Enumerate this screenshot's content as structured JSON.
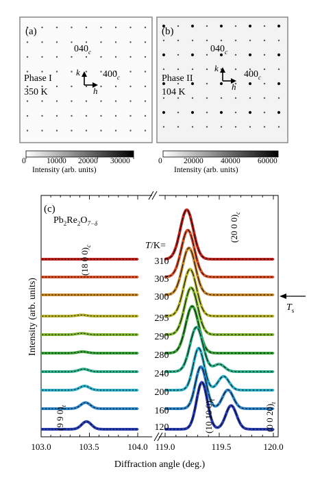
{
  "panel_a": {
    "label": "(a)",
    "reflection_040": "040",
    "reflection_040_sub": "c",
    "reflection_400": "400",
    "reflection_400_sub": "c",
    "phase": "Phase I",
    "temperature": "350 K",
    "axis_k": "k",
    "axis_h": "h",
    "colorbar_ticks": [
      "0",
      "10000",
      "20000",
      "30000"
    ],
    "colorbar_label": "Intensity (arb. units)"
  },
  "panel_b": {
    "label": "(b)",
    "reflection_040": "040",
    "reflection_040_sub": "c",
    "reflection_400": "400",
    "reflection_400_sub": "c",
    "phase": "Phase II",
    "temperature": "104 K",
    "axis_k": "k",
    "axis_h": "h",
    "colorbar_ticks": [
      "0",
      "20000",
      "40000",
      "60000"
    ],
    "colorbar_label": "Intensity (arb. units)"
  },
  "panel_c": {
    "label": "(c)",
    "compound_pb": "Pb",
    "compound_pb_sub": "2",
    "compound_re": "Re",
    "compound_re_sub": "2",
    "compound_o": "O",
    "compound_o_sub": "7−δ",
    "t_header": "T/K=",
    "temperatures": [
      "310",
      "305",
      "300",
      "295",
      "290",
      "280",
      "240",
      "200",
      "160",
      "120"
    ],
    "ts_label": "T",
    "ts_sub": "s",
    "ylabel": "Intensity (arb. units)",
    "xlabel": "Diffraction angle (deg.)",
    "peak_1800": "(18 0 0)",
    "peak_1800_sub": "c",
    "peak_2000": "(20 0 0)",
    "peak_2000_sub": "c",
    "peak_990": "(9 9 0)",
    "peak_990_sub": "t",
    "peak_10100": "(10 10 0)",
    "peak_10100_sub": "t",
    "peak_0020": "(0 0 20)",
    "peak_0020_sub": "t",
    "left_ticks": [
      "103.0",
      "103.5",
      "104.0"
    ],
    "right_ticks": [
      "119.0",
      "119.5",
      "120.0"
    ]
  },
  "chart_data": {
    "type": "line",
    "title": "",
    "xlabel": "Diffraction angle (deg.)",
    "ylabel": "Intensity (arb. units)",
    "broken_x_axis": true,
    "xlim_left": [
      103.0,
      104.0
    ],
    "xlim_right": [
      119.0,
      120.0
    ],
    "series": [
      {
        "name": "310",
        "color": "#c0251e",
        "peaks": [
          {
            "x": 119.2,
            "height": 1.0,
            "width": 0.06
          }
        ]
      },
      {
        "name": "305",
        "color": "#d9532a",
        "peaks": [
          {
            "x": 119.21,
            "height": 0.95,
            "width": 0.06
          }
        ]
      },
      {
        "name": "300",
        "color": "#c98a2b",
        "peaks": [
          {
            "x": 119.22,
            "height": 0.95,
            "width": 0.06
          }
        ]
      },
      {
        "name": "295",
        "color": "#b9b42a",
        "peaks": [
          {
            "x": 103.42,
            "height": 0.07,
            "width": 0.05
          },
          {
            "x": 119.23,
            "height": 0.95,
            "width": 0.06
          }
        ]
      },
      {
        "name": "290",
        "color": "#7fb52b",
        "peaks": [
          {
            "x": 103.42,
            "height": 0.08,
            "width": 0.05
          },
          {
            "x": 119.24,
            "height": 0.95,
            "width": 0.06
          }
        ]
      },
      {
        "name": "280",
        "color": "#3aa33a",
        "peaks": [
          {
            "x": 103.43,
            "height": 0.09,
            "width": 0.05
          },
          {
            "x": 119.25,
            "height": 0.95,
            "width": 0.06
          }
        ]
      },
      {
        "name": "240",
        "color": "#2bb08a",
        "peaks": [
          {
            "x": 103.44,
            "height": 0.16,
            "width": 0.05
          },
          {
            "x": 119.29,
            "height": 0.9,
            "width": 0.06
          },
          {
            "x": 119.5,
            "height": 0.15,
            "width": 0.05
          }
        ]
      },
      {
        "name": "200",
        "color": "#2bb0c9",
        "peaks": [
          {
            "x": 103.45,
            "height": 0.26,
            "width": 0.05
          },
          {
            "x": 119.31,
            "height": 0.85,
            "width": 0.05
          },
          {
            "x": 119.54,
            "height": 0.28,
            "width": 0.05
          }
        ]
      },
      {
        "name": "160",
        "color": "#2b86c9",
        "peaks": [
          {
            "x": 103.46,
            "height": 0.38,
            "width": 0.05
          },
          {
            "x": 119.33,
            "height": 0.85,
            "width": 0.05
          },
          {
            "x": 119.58,
            "height": 0.38,
            "width": 0.05
          }
        ]
      },
      {
        "name": "120",
        "color": "#2b3fb5",
        "peaks": [
          {
            "x": 103.47,
            "height": 0.48,
            "width": 0.05
          },
          {
            "x": 119.34,
            "height": 0.95,
            "width": 0.05
          },
          {
            "x": 119.61,
            "height": 0.48,
            "width": 0.05
          }
        ]
      }
    ]
  }
}
